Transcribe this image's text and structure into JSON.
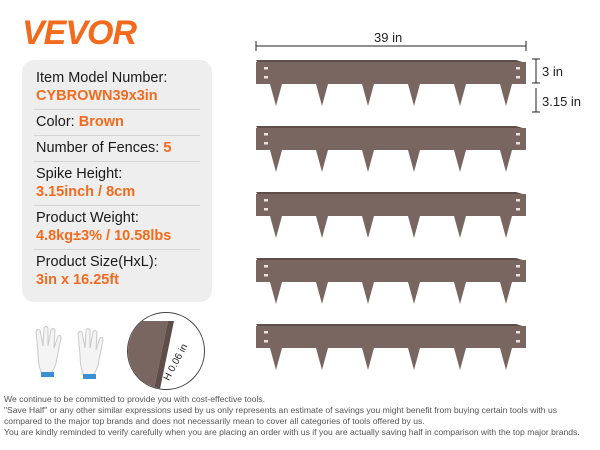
{
  "brand": "VEVOR",
  "specs": [
    {
      "label": "Item Model Number:",
      "value": "CYBROWN39x3in"
    },
    {
      "label": "Color:",
      "value": "Brown",
      "inline": true
    },
    {
      "label": "Number of Fences:",
      "value": "5",
      "inline": true
    },
    {
      "label": "Spike Height:",
      "value": "3.15inch / 8cm"
    },
    {
      "label": "Product Weight:",
      "value": "4.8kg±3% / 10.58lbs"
    },
    {
      "label": "Product Size(HxL):",
      "value": "3in x 16.25ft"
    }
  ],
  "dimensions": {
    "length": "39 in",
    "height": "3 in",
    "spike": "3.15 in",
    "thickness": "0.06 in",
    "thickness_symbol": "H"
  },
  "fence_count": 5,
  "colors": {
    "brand": "#f26b1d",
    "fence": "#7a6661",
    "fence_edge": "#5e4d49"
  },
  "icons": [
    "gloves-icon",
    "zoom-detail-icon"
  ],
  "disclaimer": [
    "We continue to be committed to provide you with cost-effective tools.",
    "\"Save Half\" or any other similar expressions used by us only represents an estimate of savings you might benefit from buying certain tools with us",
    "compared to the major top brands and does not necessarily mean to cover all categories of tools offered by us.",
    "You are kindly reminded to verify carefully when you are placing an order with us if you are actually saving half in comparison with the top major brands."
  ]
}
